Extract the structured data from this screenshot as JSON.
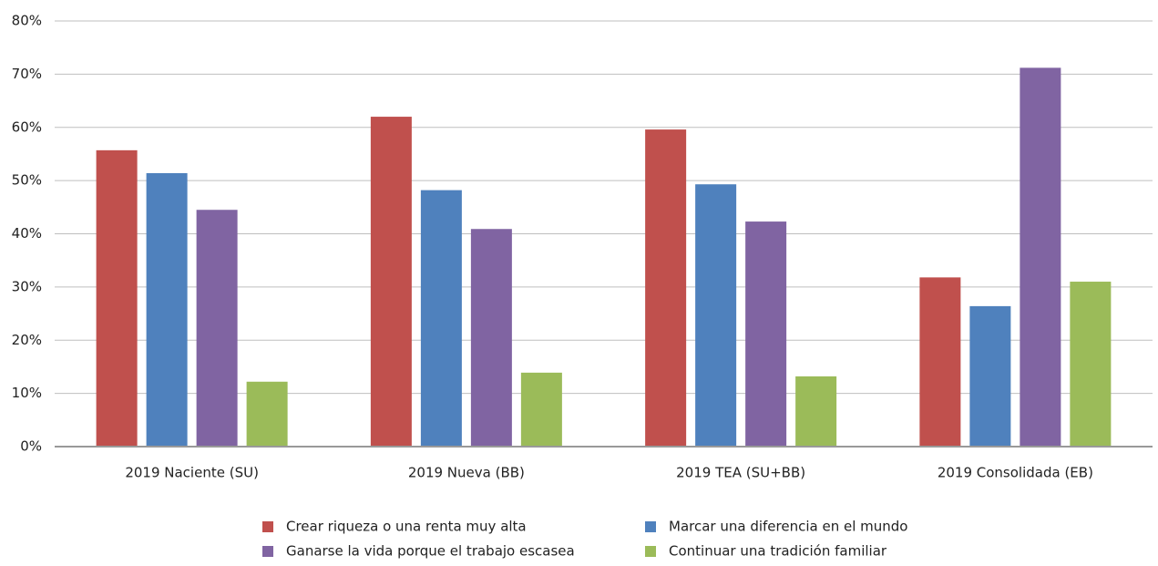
{
  "chart_data": {
    "type": "bar",
    "categories": [
      "2019 Naciente (SU)",
      "2019 Nueva (BB)",
      "2019 TEA (SU+BB)",
      "2019 Consolidada (EB)"
    ],
    "series": [
      {
        "name": "Crear riqueza o una renta muy alta",
        "color": "#c0504d",
        "values": [
          55.7,
          62.0,
          59.6,
          31.8
        ]
      },
      {
        "name": "Marcar una diferencia en el mundo",
        "color": "#4f81bd",
        "values": [
          51.4,
          48.2,
          49.3,
          26.4
        ]
      },
      {
        "name": "Ganarse la vida porque el trabajo escasea",
        "color": "#8064a2",
        "values": [
          44.5,
          40.9,
          42.3,
          71.2
        ]
      },
      {
        "name": "Continuar una tradición familiar",
        "color": "#9bbb59",
        "values": [
          12.2,
          13.9,
          13.2,
          31.0
        ]
      }
    ],
    "ylim": [
      0,
      80
    ],
    "yticks": [
      {
        "value": 0,
        "label": "0%"
      },
      {
        "value": 10,
        "label": "10%"
      },
      {
        "value": 20,
        "label": "20%"
      },
      {
        "value": 30,
        "label": "30%"
      },
      {
        "value": 40,
        "label": "40%"
      },
      {
        "value": 50,
        "label": "50%"
      },
      {
        "value": 60,
        "label": "60%"
      },
      {
        "value": 70,
        "label": "70%"
      },
      {
        "value": 80,
        "label": "80%"
      }
    ],
    "grid": true,
    "legend": "bottom"
  }
}
